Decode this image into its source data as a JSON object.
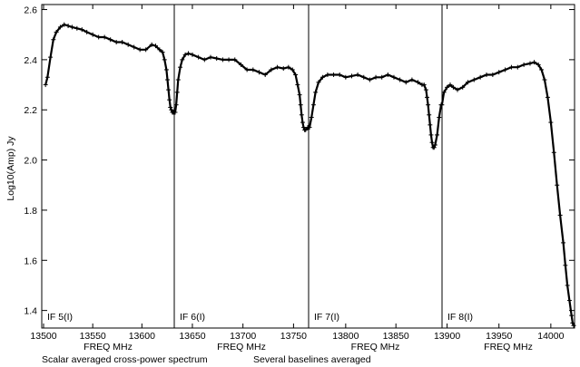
{
  "chart_data": {
    "type": "line",
    "ylabel": "Log10(Amp) Jy",
    "ylim": [
      1.33,
      2.62
    ],
    "y_ticks": [
      "1.4",
      "1.6",
      "1.8",
      "2.0",
      "2.2",
      "2.4",
      "2.6"
    ],
    "footer": [
      "Scalar averaged cross-power spectrum",
      "Several baselines averaged"
    ],
    "marker": "plus",
    "panels": [
      {
        "label": "IF 5(I)",
        "xlabel": "FREQ MHz",
        "xlim": [
          13500,
          13632
        ],
        "x_ticks": [
          "13500",
          "13550",
          "13600"
        ],
        "series": [
          {
            "x": [
              13502,
              13504,
              13507,
              13510,
              13513,
              13517,
              13521,
              13525,
              13529,
              13534,
              13539,
              13544,
              13550,
              13556,
              13562,
              13568,
              13574,
              13580,
              13586,
              13592,
              13598,
              13604,
              13610,
              13614,
              13618,
              13621,
              13623,
              13625,
              13626,
              13627,
              13628,
              13629,
              13630,
              13631,
              13632
            ],
            "y": [
              2.3,
              2.33,
              2.41,
              2.48,
              2.51,
              2.53,
              2.54,
              2.535,
              2.53,
              2.525,
              2.52,
              2.51,
              2.5,
              2.49,
              2.49,
              2.48,
              2.47,
              2.47,
              2.46,
              2.45,
              2.44,
              2.44,
              2.46,
              2.455,
              2.44,
              2.43,
              2.4,
              2.36,
              2.32,
              2.28,
              2.24,
              2.21,
              2.2,
              2.19,
              2.19
            ]
          }
        ]
      },
      {
        "label": "IF 6(I)",
        "xlabel": "FREQ MHz",
        "xlim": [
          13633,
          13764
        ],
        "x_ticks": [
          "13650",
          "13700",
          "13750"
        ],
        "series": [
          {
            "x": [
              13633,
              13634,
              13635,
              13636,
              13638,
              13640,
              13643,
              13646,
              13650,
              13656,
              13662,
              13668,
              13674,
              13680,
              13686,
              13692,
              13698,
              13704,
              13710,
              13716,
              13722,
              13728,
              13734,
              13740,
              13745,
              13749,
              13752,
              13754,
              13756,
              13757,
              13758,
              13759,
              13760,
              13761,
              13762,
              13764
            ],
            "y": [
              2.19,
              2.22,
              2.27,
              2.32,
              2.37,
              2.4,
              2.42,
              2.425,
              2.42,
              2.41,
              2.4,
              2.41,
              2.405,
              2.4,
              2.4,
              2.4,
              2.38,
              2.36,
              2.36,
              2.35,
              2.34,
              2.36,
              2.37,
              2.365,
              2.37,
              2.36,
              2.34,
              2.3,
              2.26,
              2.22,
              2.18,
              2.15,
              2.13,
              2.12,
              2.12,
              2.13
            ]
          }
        ]
      },
      {
        "label": "IF 7(I)",
        "xlabel": "FREQ MHz",
        "xlim": [
          13764,
          13895
        ],
        "x_ticks": [
          "13800",
          "13850"
        ],
        "series": [
          {
            "x": [
              13764,
              13766,
              13768,
              13770,
              13773,
              13777,
              13782,
              13788,
              13794,
              13800,
              13806,
              13812,
              13818,
              13824,
              13830,
              13836,
              13842,
              13848,
              13854,
              13860,
              13866,
              13872,
              13876,
              13878,
              13880,
              13881,
              13882,
              13883,
              13884,
              13885,
              13886,
              13887,
              13888,
              13889,
              13891,
              13893,
              13895
            ],
            "y": [
              2.13,
              2.17,
              2.22,
              2.27,
              2.31,
              2.33,
              2.34,
              2.34,
              2.34,
              2.33,
              2.335,
              2.34,
              2.33,
              2.32,
              2.33,
              2.33,
              2.34,
              2.33,
              2.32,
              2.31,
              2.32,
              2.31,
              2.3,
              2.3,
              2.28,
              2.25,
              2.22,
              2.18,
              2.14,
              2.1,
              2.07,
              2.05,
              2.05,
              2.06,
              2.1,
              2.17,
              2.22
            ]
          }
        ]
      },
      {
        "label": "IF 8(I)",
        "xlabel": "FREQ MHz",
        "xlim": [
          13896,
          14022
        ],
        "x_ticks": [
          "13900",
          "13950",
          "14000"
        ],
        "series": [
          {
            "x": [
              13895,
              13897,
              13900,
              13903,
              13906,
              13910,
              13915,
              13920,
              13926,
              13932,
              13938,
              13944,
              13950,
              13956,
              13962,
              13968,
              13974,
              13980,
              13984,
              13988,
              13991,
              13994,
              13997,
              14000,
              14003,
              14006,
              14009,
              14012,
              14014,
              14016,
              14018,
              14020,
              14021,
              14022
            ],
            "y": [
              2.22,
              2.27,
              2.29,
              2.3,
              2.29,
              2.28,
              2.29,
              2.31,
              2.32,
              2.33,
              2.34,
              2.34,
              2.35,
              2.36,
              2.37,
              2.37,
              2.38,
              2.385,
              2.39,
              2.38,
              2.36,
              2.32,
              2.25,
              2.15,
              2.03,
              1.9,
              1.78,
              1.67,
              1.58,
              1.5,
              1.44,
              1.38,
              1.35,
              1.34
            ]
          }
        ]
      }
    ]
  }
}
